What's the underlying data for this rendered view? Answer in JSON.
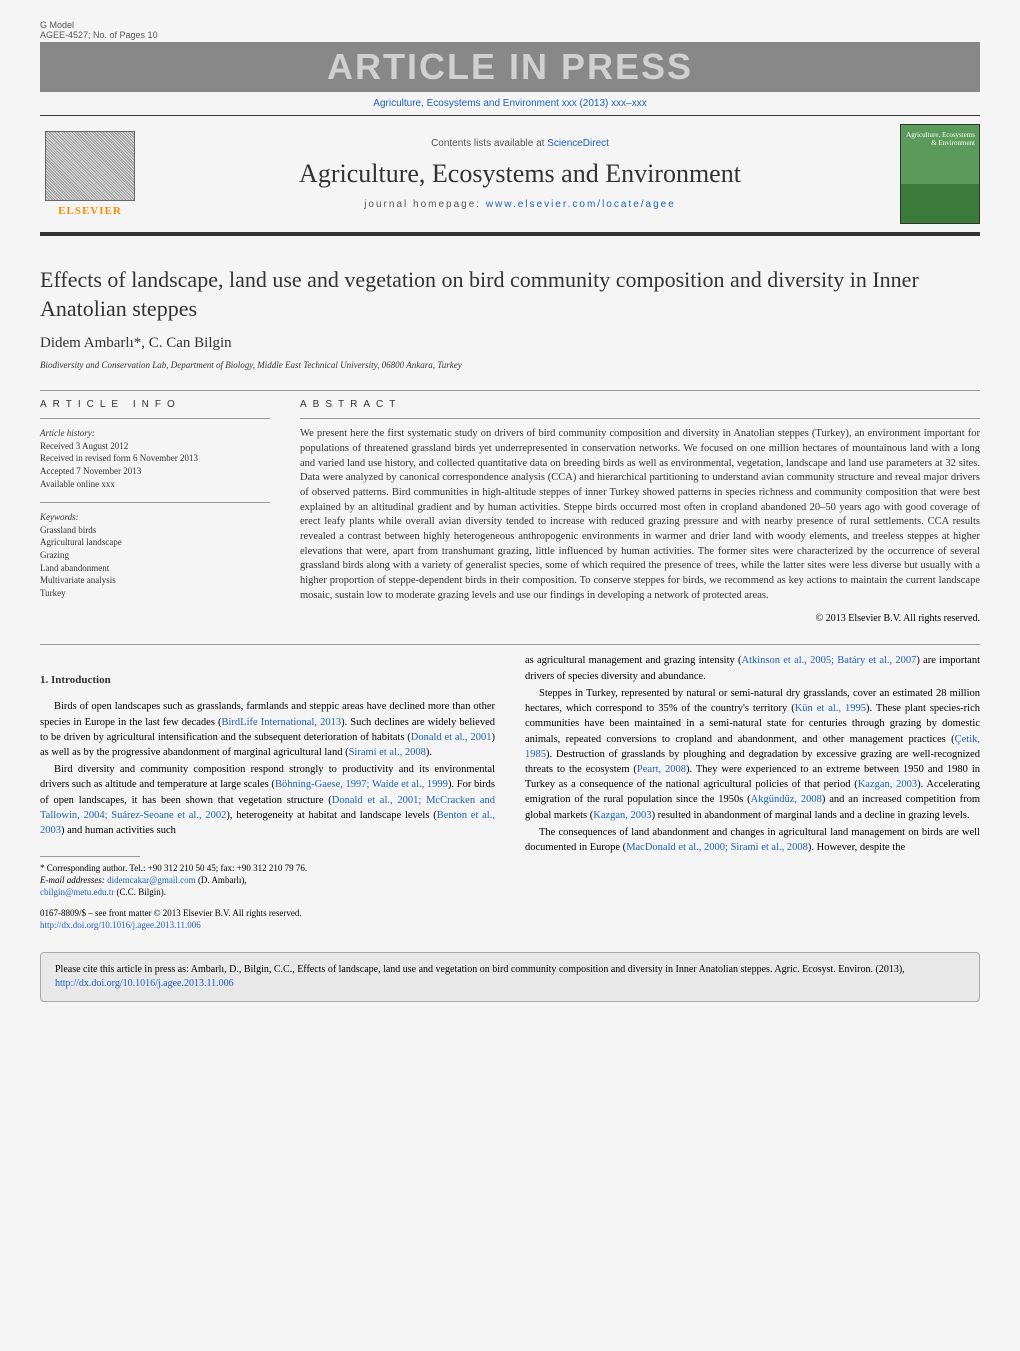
{
  "header": {
    "gmodel": "G Model",
    "article_id": "AGEE-4527;   No. of Pages 10",
    "in_press": "ARTICLE IN PRESS",
    "journal_ref": "Agriculture, Ecosystems and Environment xxx (2013) xxx–xxx",
    "contents_prefix": "Contents lists available at ",
    "contents_link": "ScienceDirect",
    "journal_title": "Agriculture, Ecosystems and Environment",
    "homepage_prefix": "journal homepage: ",
    "homepage_url": "www.elsevier.com/locate/agee",
    "elsevier": "ELSEVIER",
    "cover_text": "Agriculture, Ecosystems & Environment"
  },
  "article": {
    "title": "Effects of landscape, land use and vegetation on bird community composition and diversity in Inner Anatolian steppes",
    "authors": "Didem Ambarlı*, C. Can Bilgin",
    "affiliation": "Biodiversity and Conservation Lab, Department of Biology, Middle East Technical University, 06800 Ankara, Turkey"
  },
  "info": {
    "label_info": "article info",
    "label_abstract": "abstract",
    "history_label": "Article history:",
    "received": "Received 3 August 2012",
    "revised": "Received in revised form 6 November 2013",
    "accepted": "Accepted 7 November 2013",
    "online": "Available online xxx",
    "keywords_label": "Keywords:",
    "kw1": "Grassland birds",
    "kw2": "Agricultural landscape",
    "kw3": "Grazing",
    "kw4": "Land abandonment",
    "kw5": "Multivariate analysis",
    "kw6": "Turkey"
  },
  "abstract": {
    "text": "We present here the first systematic study on drivers of bird community composition and diversity in Anatolian steppes (Turkey), an environment important for populations of threatened grassland birds yet underrepresented in conservation networks. We focused on one million hectares of mountainous land with a long and varied land use history, and collected quantitative data on breeding birds as well as environmental, vegetation, landscape and land use parameters at 32 sites. Data were analyzed by canonical correspondence analysis (CCA) and hierarchical partitioning to understand avian community structure and reveal major drivers of observed patterns. Bird communities in high-altitude steppes of inner Turkey showed patterns in species richness and community composition that were best explained by an altitudinal gradient and by human activities. Steppe birds occurred most often in cropland abandoned 20–50 years ago with good coverage of erect leafy plants while overall avian diversity tended to increase with reduced grazing pressure and with nearby presence of rural settlements. CCA results revealed a contrast between highly heterogeneous anthropogenic environments in warmer and drier land with woody elements, and treeless steppes at higher elevations that were, apart from transhumant grazing, little influenced by human activities. The former sites were characterized by the occurrence of several grassland birds along with a variety of generalist species, some of which required the presence of trees, while the latter sites were less diverse but usually with a higher proportion of steppe-dependent birds in their composition. To conserve steppes for birds, we recommend as key actions to maintain the current landscape mosaic, sustain low to moderate grazing levels and use our findings in developing a network of protected areas.",
    "copyright": "© 2013 Elsevier B.V. All rights reserved."
  },
  "intro": {
    "heading": "1.  Introduction",
    "p1a": "Birds of open landscapes such as grasslands, farmlands and steppic areas have declined more than other species in Europe in the last few decades (",
    "p1_ref1": "BirdLife International, 2013",
    "p1b": "). Such declines are widely believed to be driven by agricultural intensification and the subsequent deterioration of habitats (",
    "p1_ref2": "Donald et al., 2001",
    "p1c": ") as well as by the progressive abandonment of marginal agricultural land (",
    "p1_ref3": "Sirami et al., 2008",
    "p1d": ").",
    "p2a": "Bird diversity and community composition respond strongly to productivity and its environmental drivers such as altitude and temperature at large scales (",
    "p2_ref1": "Böhning-Gaese, 1997; Waide et al., 1999",
    "p2b": "). For birds of open landscapes, it has been shown that vegetation structure (",
    "p2_ref2": "Donald et al., 2001; McCracken and Tallowin, 2004; Suárez-Seoane et al., 2002",
    "p2c": "), heterogeneity at habitat and landscape levels (",
    "p2_ref3": "Benton et al., 2003",
    "p2d": ") and human activities such",
    "p3a": "as agricultural management and grazing intensity (",
    "p3_ref1": "Atkinson et al., 2005; Batáry et al., 2007",
    "p3b": ") are important drivers of species diversity and abundance.",
    "p4a": "Steppes in Turkey, represented by natural or semi-natural dry grasslands, cover an estimated 28 million hectares, which correspond to 35% of the country's territory (",
    "p4_ref1": "Kün et al., 1995",
    "p4b": "). These plant species-rich communities have been maintained in a semi-natural state for centuries through grazing by domestic animals, repeated conversions to cropland and abandonment, and other management practices (",
    "p4_ref2": "Çetik, 1985",
    "p4c": "). Destruction of grasslands by ploughing and degradation by excessive grazing are well-recognized threats to the ecosystem (",
    "p4_ref3": "Peart, 2008",
    "p4d": "). They were experienced to an extreme between 1950 and 1980 in Turkey as a consequence of the national agricultural policies of that period (",
    "p4_ref4": "Kazgan, 2003",
    "p4e": "). Accelerating emigration of the rural population since the 1950s (",
    "p4_ref5": "Akgündüz, 2008",
    "p4f": ") and an increased competition from global markets (",
    "p4_ref6": "Kazgan, 2003",
    "p4g": ") resulted in abandonment of marginal lands and a decline in grazing levels.",
    "p5a": "The consequences of land abandonment and changes in agricultural land management on birds are well documented in Europe (",
    "p5_ref1": "MacDonald et al., 2000; Sirami et al., 2008",
    "p5b": "). However, despite the"
  },
  "footnote": {
    "corr": "* Corresponding author. Tel.: +90 312 210 50 45; fax: +90 312 210 79 76.",
    "email_label": "E-mail addresses: ",
    "email1": "didemcakar@gmail.com",
    "email1_name": " (D. Ambarlı),",
    "email2": "cbilgin@metu.edu.tr",
    "email2_name": " (C.C. Bilgin)."
  },
  "front_matter": {
    "line1": "0167-8809/$ – see front matter © 2013 Elsevier B.V. All rights reserved.",
    "doi": "http://dx.doi.org/10.1016/j.agee.2013.11.006"
  },
  "cite_box": {
    "text": "Please cite this article in press as: Ambarlı, D., Bilgin, C.C., Effects of landscape, land use and vegetation on bird community composition and diversity in Inner Anatolian steppes. Agric. Ecosyst. Environ. (2013), ",
    "doi": "http://dx.doi.org/10.1016/j.agee.2013.11.006"
  },
  "colors": {
    "link": "#2060c0",
    "elsevier_orange": "#ff8c00",
    "press_bg": "#888888",
    "press_fg": "#d0d0d0",
    "body_bg": "#f5f5f5",
    "cite_bg": "#e8e8e8"
  }
}
